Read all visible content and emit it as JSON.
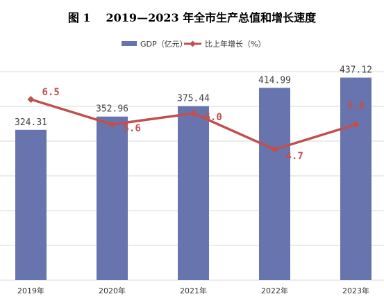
{
  "figure": {
    "label": "图 1",
    "title": "2019—2023 年全市生产总值和增长速度"
  },
  "colors": {
    "bar": "#6874ad",
    "line": "#c0504d",
    "grid": "#d9d9d9",
    "value_text": "#404040"
  },
  "chart_data": {
    "type": "bar",
    "categories": [
      "2019年",
      "2020年",
      "2021年",
      "2022年",
      "2023年"
    ],
    "series": [
      {
        "name": "GDP（亿元）",
        "type": "bar",
        "axis": "left",
        "values": [
          324.31,
          352.96,
          375.44,
          414.99,
          437.12
        ],
        "labels": [
          "324.31",
          "352.96",
          "375.44",
          "414.99",
          "437.12"
        ]
      },
      {
        "name": "比上年增长（%）",
        "type": "line",
        "axis": "right",
        "values": [
          6.5,
          5.6,
          6.0,
          4.7,
          5.6
        ],
        "labels": [
          "6.5",
          "5.6",
          "6.0",
          "4.7",
          "5.6"
        ]
      }
    ],
    "ylim_left": [
      0,
      450
    ],
    "ylim_right": [
      0,
      7.5
    ],
    "grid": true,
    "legend_position": "top-center"
  }
}
